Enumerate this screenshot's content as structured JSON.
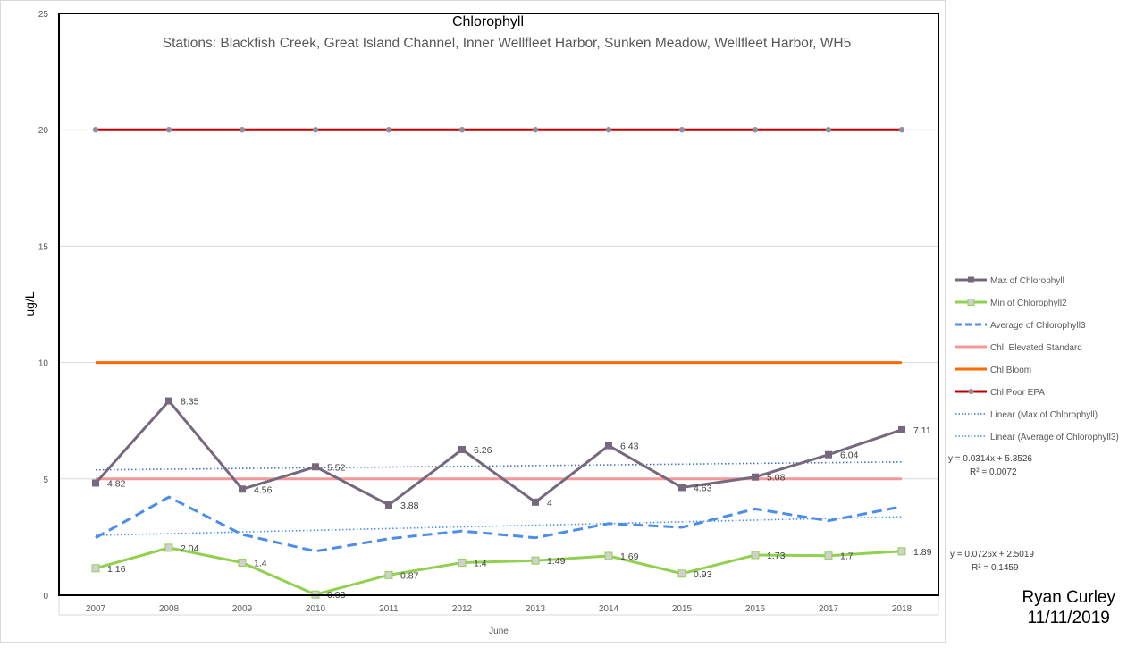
{
  "chart_data": {
    "type": "line",
    "title": "Chlorophyll",
    "subtitle": "Stations: Blackfish Creek, Great Island Channel, Inner Wellfleet Harbor, Sunken Meadow, Wellfleet Harbor, WH5",
    "xlabel": "June",
    "ylabel": "ug/L",
    "ylim": [
      0,
      25
    ],
    "yticks": [
      "0",
      "5",
      "10",
      "15",
      "20",
      "25"
    ],
    "grid": true,
    "legend_position": "right",
    "categories": [
      "2007",
      "2008",
      "2009",
      "2010",
      "2011",
      "2012",
      "2013",
      "2014",
      "2015",
      "2016",
      "2017",
      "2018"
    ],
    "series": [
      {
        "name": "Max of Chlorophyll",
        "color": "#76687d",
        "style": "solid",
        "marker": "square-filled",
        "labels": true,
        "values": [
          4.82,
          8.35,
          4.56,
          5.52,
          3.88,
          6.26,
          4,
          6.43,
          4.63,
          5.08,
          6.04,
          7.11
        ]
      },
      {
        "name": "Min of Chlorophyll2",
        "color": "#92d050",
        "style": "solid",
        "marker": "square-hollow",
        "labels": true,
        "values": [
          1.16,
          2.04,
          1.4,
          0.03,
          0.87,
          1.4,
          1.49,
          1.69,
          0.93,
          1.73,
          1.7,
          1.89
        ]
      },
      {
        "name": "Average of Chlorophyll3",
        "color": "#4a8ee8",
        "style": "dashed",
        "marker": "none",
        "labels": false,
        "values": [
          2.47,
          4.22,
          2.61,
          1.89,
          2.43,
          2.76,
          2.47,
          3.08,
          2.92,
          3.71,
          3.2,
          3.81
        ]
      },
      {
        "name": "Chl. Elevated Standard",
        "color": "#f4999a",
        "style": "solid",
        "marker": "none",
        "labels": false,
        "values": [
          5,
          5,
          5,
          5,
          5,
          5,
          5,
          5,
          5,
          5,
          5,
          5
        ]
      },
      {
        "name": "Chl Bloom",
        "color": "#ff6a00",
        "style": "solid",
        "marker": "none",
        "labels": false,
        "values": [
          10,
          10,
          10,
          10,
          10,
          10,
          10,
          10,
          10,
          10,
          10,
          10
        ]
      },
      {
        "name": "Chl Poor EPA",
        "color": "#c00000",
        "style": "solid",
        "marker": "circle",
        "labels": false,
        "values": [
          20,
          20,
          20,
          20,
          20,
          20,
          20,
          20,
          20,
          20,
          20,
          20
        ]
      }
    ],
    "trendlines": [
      {
        "name": "Linear (Max of Chlorophyll)",
        "color": "#4472c4",
        "slope": 0.0314,
        "intercept": 5.3526,
        "equation": "y = 0.0314x + 5.3526",
        "r2": "R² = 0.0072"
      },
      {
        "name": "Linear (Average of Chlorophyll3)",
        "color": "#4a8ee8",
        "slope": 0.0726,
        "intercept": 2.5019,
        "equation": "y = 0.0726x + 2.5019",
        "r2": "R² = 0.1459"
      }
    ]
  },
  "signature": {
    "name": "Ryan Curley",
    "date": "11/11/2019"
  }
}
